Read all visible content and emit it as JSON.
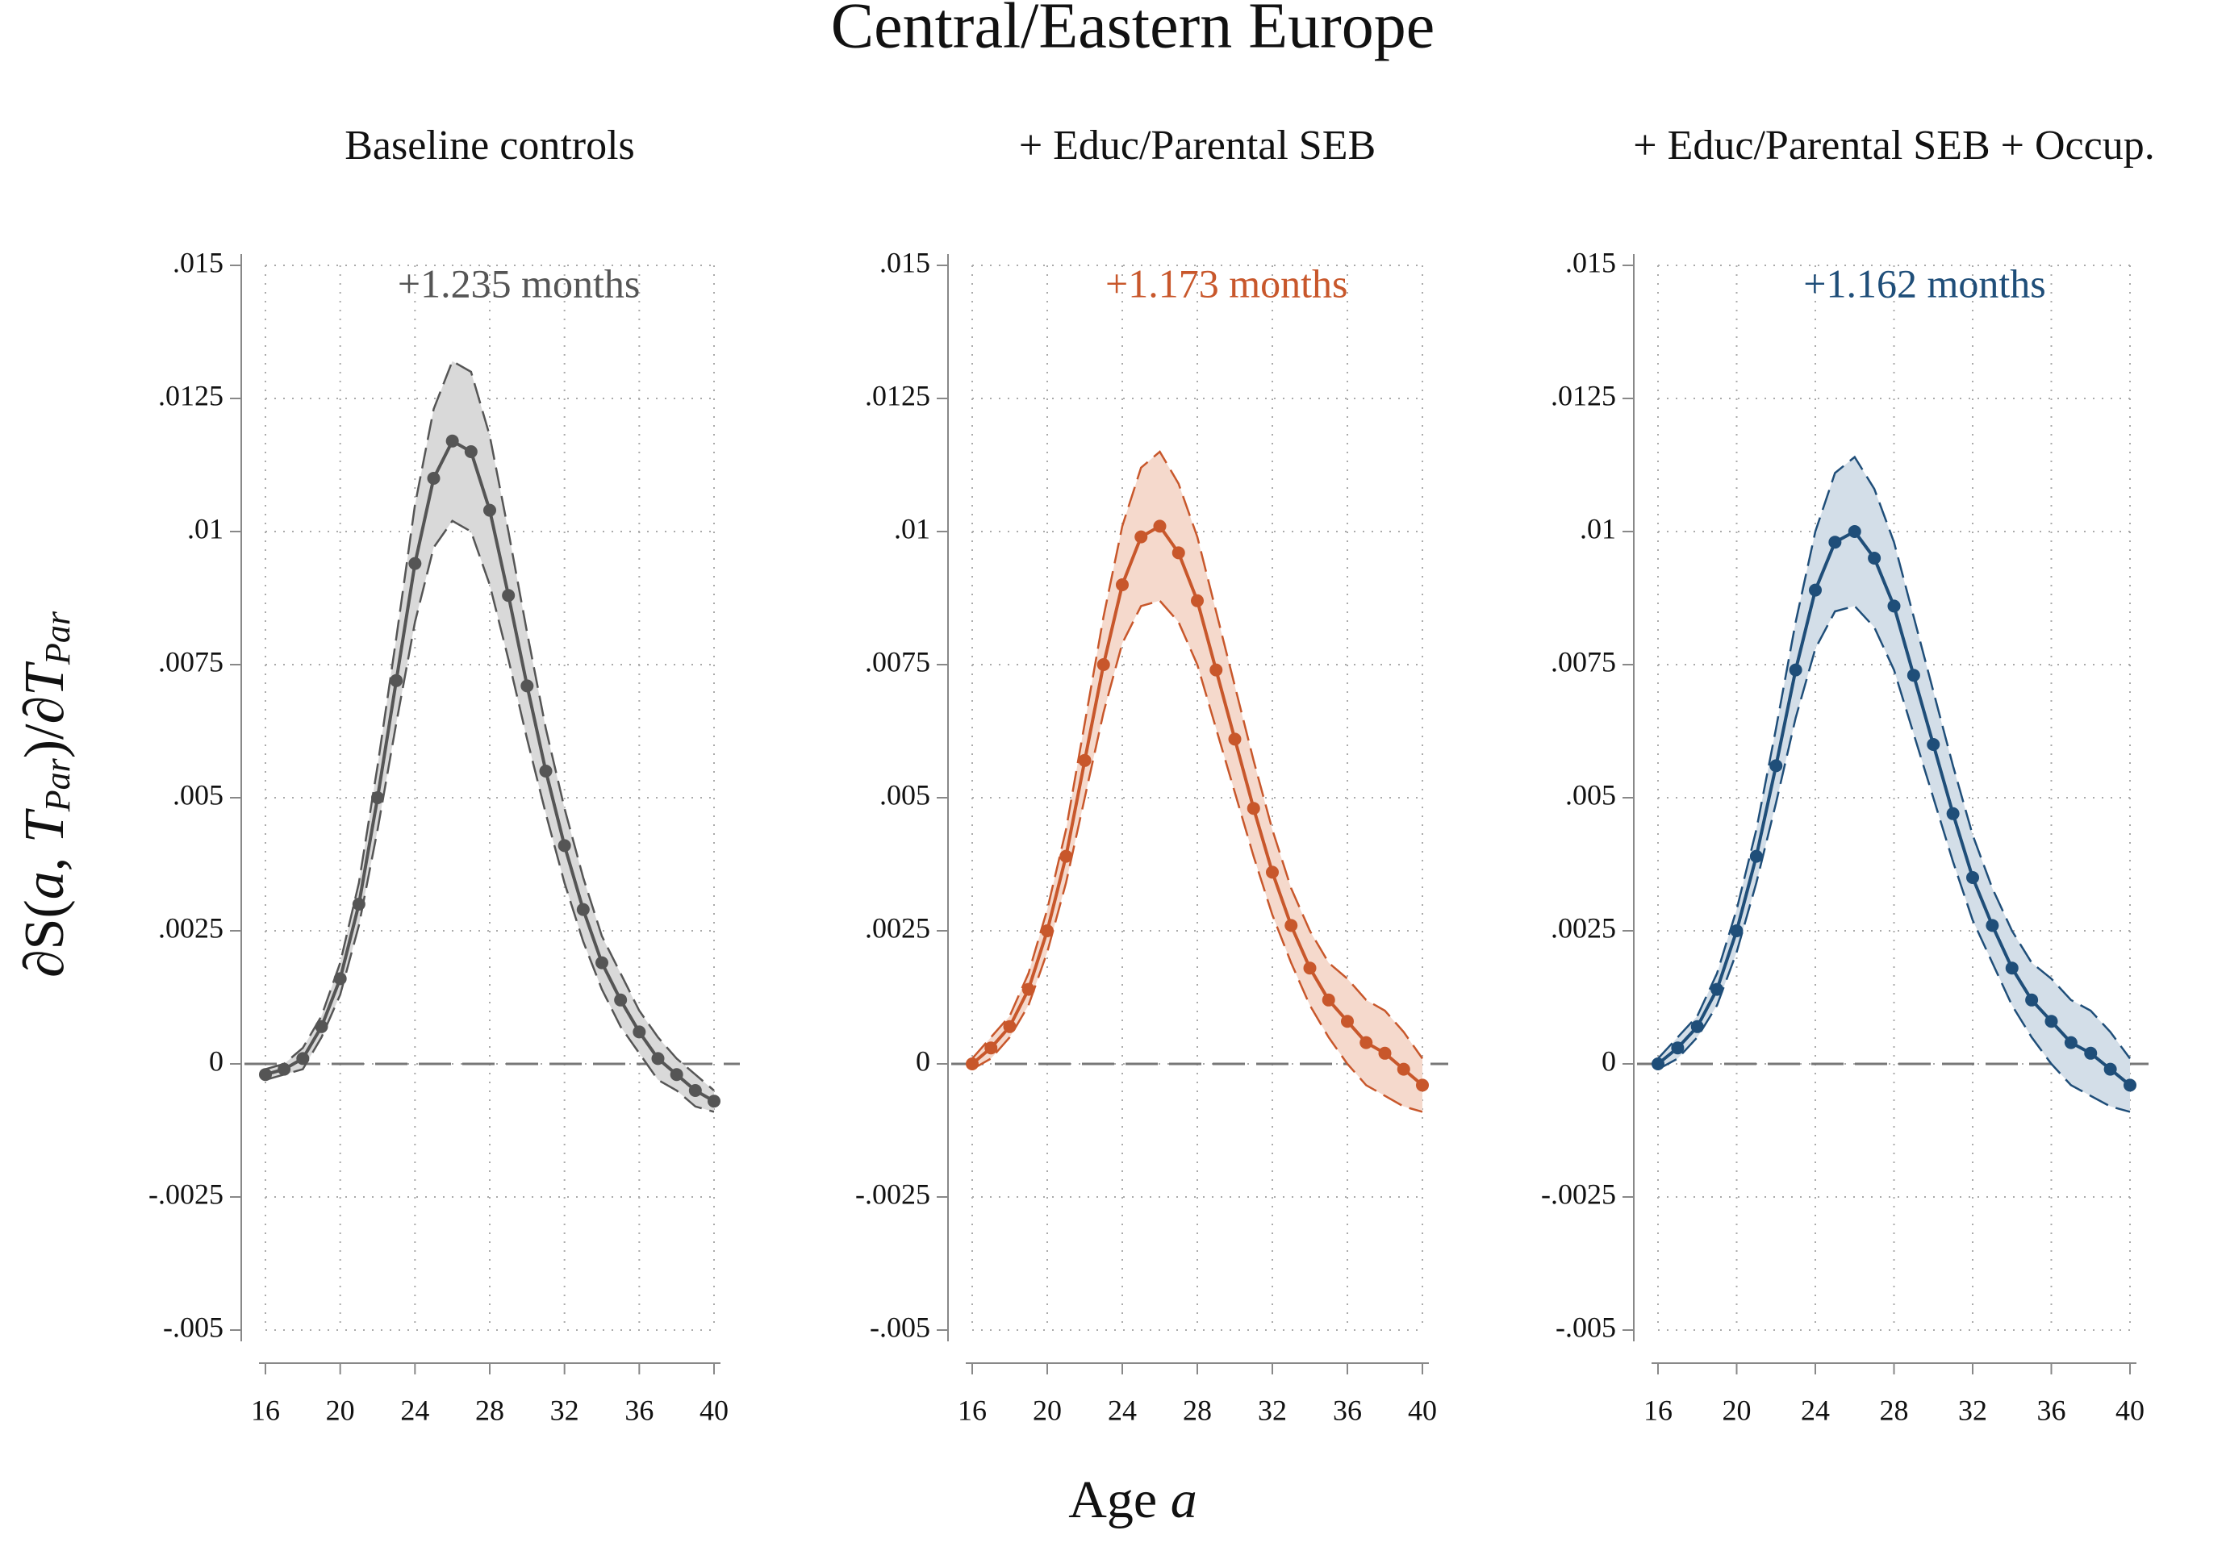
{
  "title": "Central/Eastern Europe",
  "y_label": [
    "∂S(",
    "a",
    ", ",
    "T",
    "Par",
    ")/∂",
    "T",
    "Par"
  ],
  "x_label": [
    "Age ",
    "a"
  ],
  "chart_data": [
    {
      "type": "line",
      "title": "Baseline controls",
      "annotation": "+1.235 months",
      "color": "#555555",
      "band_color": "#d9d9d9",
      "x": [
        16,
        17,
        18,
        19,
        20,
        21,
        22,
        23,
        24,
        25,
        26,
        27,
        28,
        29,
        30,
        31,
        32,
        33,
        34,
        35,
        36,
        37,
        38,
        39,
        40
      ],
      "values": [
        -0.0002,
        -0.0001,
        0.0001,
        0.0007,
        0.0016,
        0.003,
        0.005,
        0.0072,
        0.0094,
        0.011,
        0.0117,
        0.0115,
        0.0104,
        0.0088,
        0.0071,
        0.0055,
        0.0041,
        0.0029,
        0.0019,
        0.0012,
        0.0006,
        0.0001,
        -0.0002,
        -0.0005,
        -0.0007
      ],
      "lower": [
        -0.0003,
        -0.0002,
        -0.0001,
        0.0005,
        0.0013,
        0.0026,
        0.0044,
        0.0064,
        0.0083,
        0.0097,
        0.0102,
        0.01,
        0.009,
        0.0076,
        0.0061,
        0.0047,
        0.0034,
        0.0023,
        0.0014,
        0.0007,
        0.0002,
        -0.0003,
        -0.0005,
        -0.0008,
        -0.0009
      ],
      "upper": [
        -0.0001,
        0.0,
        0.0003,
        0.0009,
        0.0019,
        0.0034,
        0.0056,
        0.008,
        0.0105,
        0.0123,
        0.0132,
        0.013,
        0.0118,
        0.01,
        0.0081,
        0.0063,
        0.0048,
        0.0035,
        0.0024,
        0.0017,
        0.001,
        0.0005,
        0.0001,
        -0.0002,
        -0.0005
      ],
      "xlim": [
        16,
        40
      ],
      "xticks": [
        16,
        20,
        24,
        28,
        32,
        36,
        40
      ],
      "ylim": [
        -0.005,
        0.015
      ],
      "yticks": [
        {
          "value": -0.005,
          "label": "-.005"
        },
        {
          "value": -0.0025,
          "label": "-.0025"
        },
        0,
        {
          "value": 0.0025,
          "label": ".0025"
        },
        {
          "value": 0.005,
          "label": ".005"
        },
        {
          "value": 0.0075,
          "label": ".0075"
        },
        {
          "value": 0.01,
          "label": ".01"
        },
        {
          "value": 0.0125,
          "label": ".0125"
        },
        {
          "value": 0.015,
          "label": ".015"
        }
      ],
      "grid": true
    },
    {
      "type": "line",
      "title": "+ Educ/Parental SEB",
      "annotation": "+1.173 months",
      "color": "#c8572b",
      "band_color": "#f5d9cc",
      "x": [
        16,
        17,
        18,
        19,
        20,
        21,
        22,
        23,
        24,
        25,
        26,
        27,
        28,
        29,
        30,
        31,
        32,
        33,
        34,
        35,
        36,
        37,
        38,
        39,
        40
      ],
      "values": [
        0.0,
        0.0003,
        0.0007,
        0.0014,
        0.0025,
        0.0039,
        0.0057,
        0.0075,
        0.009,
        0.0099,
        0.0101,
        0.0096,
        0.0087,
        0.0074,
        0.0061,
        0.0048,
        0.0036,
        0.0026,
        0.0018,
        0.0012,
        0.0008,
        0.0004,
        0.0002,
        -0.0001,
        -0.0004
      ],
      "lower": [
        -0.0001,
        0.0001,
        0.0005,
        0.0011,
        0.0021,
        0.0034,
        0.005,
        0.0066,
        0.0079,
        0.0086,
        0.0087,
        0.0083,
        0.0075,
        0.0063,
        0.0051,
        0.0039,
        0.0028,
        0.0019,
        0.0011,
        0.0005,
        0.0,
        -0.0004,
        -0.0006,
        -0.0008,
        -0.0009
      ],
      "upper": [
        0.0001,
        0.0005,
        0.0009,
        0.0017,
        0.0029,
        0.0044,
        0.0064,
        0.0084,
        0.0101,
        0.0112,
        0.0115,
        0.0109,
        0.0099,
        0.0085,
        0.0071,
        0.0057,
        0.0044,
        0.0033,
        0.0025,
        0.0019,
        0.0016,
        0.0012,
        0.001,
        0.0006,
        0.0001
      ],
      "xlim": [
        16,
        40
      ],
      "xticks": [
        16,
        20,
        24,
        28,
        32,
        36,
        40
      ],
      "ylim": [
        -0.005,
        0.015
      ],
      "yticks": [
        {
          "value": -0.005,
          "label": "-.005"
        },
        {
          "value": -0.0025,
          "label": "-.0025"
        },
        0,
        {
          "value": 0.0025,
          "label": ".0025"
        },
        {
          "value": 0.005,
          "label": ".005"
        },
        {
          "value": 0.0075,
          "label": ".0075"
        },
        {
          "value": 0.01,
          "label": ".01"
        },
        {
          "value": 0.0125,
          "label": ".0125"
        },
        {
          "value": 0.015,
          "label": ".015"
        }
      ],
      "grid": true
    },
    {
      "type": "line",
      "title": "+ Educ/Parental SEB + Occup.",
      "annotation": "+1.162 months",
      "color": "#1f4e79",
      "band_color": "#d3dee8",
      "x": [
        16,
        17,
        18,
        19,
        20,
        21,
        22,
        23,
        24,
        25,
        26,
        27,
        28,
        29,
        30,
        31,
        32,
        33,
        34,
        35,
        36,
        37,
        38,
        39,
        40
      ],
      "values": [
        0.0,
        0.0003,
        0.0007,
        0.0014,
        0.0025,
        0.0039,
        0.0056,
        0.0074,
        0.0089,
        0.0098,
        0.01,
        0.0095,
        0.0086,
        0.0073,
        0.006,
        0.0047,
        0.0035,
        0.0026,
        0.0018,
        0.0012,
        0.0008,
        0.0004,
        0.0002,
        -0.0001,
        -0.0004
      ],
      "lower": [
        -0.0001,
        0.0001,
        0.0005,
        0.0011,
        0.0021,
        0.0034,
        0.0049,
        0.0065,
        0.0078,
        0.0085,
        0.0086,
        0.0082,
        0.0074,
        0.0062,
        0.005,
        0.0038,
        0.0027,
        0.0019,
        0.0011,
        0.0005,
        0.0,
        -0.0004,
        -0.0006,
        -0.0008,
        -0.0009
      ],
      "upper": [
        0.0001,
        0.0005,
        0.0009,
        0.0017,
        0.0029,
        0.0044,
        0.0063,
        0.0083,
        0.01,
        0.0111,
        0.0114,
        0.0108,
        0.0098,
        0.0084,
        0.007,
        0.0056,
        0.0043,
        0.0033,
        0.0025,
        0.0019,
        0.0016,
        0.0012,
        0.001,
        0.0006,
        0.0001
      ],
      "xlim": [
        16,
        40
      ],
      "xticks": [
        16,
        20,
        24,
        28,
        32,
        36,
        40
      ],
      "ylim": [
        -0.005,
        0.015
      ],
      "yticks": [
        {
          "value": -0.005,
          "label": "-.005"
        },
        {
          "value": -0.0025,
          "label": "-.0025"
        },
        0,
        {
          "value": 0.0025,
          "label": ".0025"
        },
        {
          "value": 0.005,
          "label": ".005"
        },
        {
          "value": 0.0075,
          "label": ".0075"
        },
        {
          "value": 0.01,
          "label": ".01"
        },
        {
          "value": 0.0125,
          "label": ".0125"
        },
        {
          "value": 0.015,
          "label": ".015"
        }
      ],
      "grid": true
    }
  ]
}
